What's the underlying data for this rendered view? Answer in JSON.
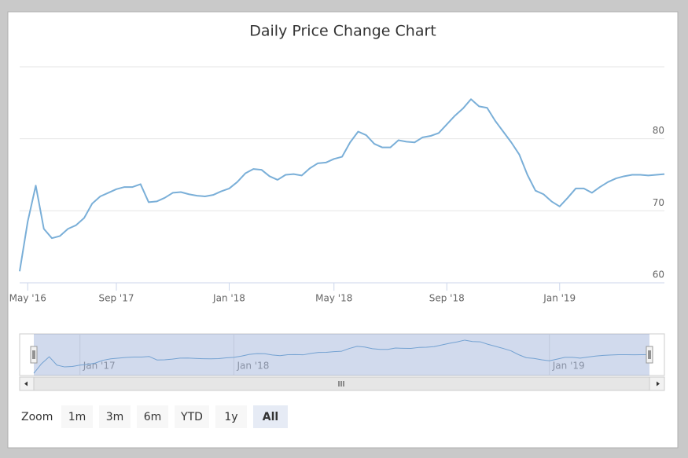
{
  "chart_data": {
    "type": "line",
    "title": "Daily Price Change Chart",
    "x": [
      "2016-04",
      "2016-05",
      "2016-06",
      "2016-07",
      "2016-09",
      "2016-11",
      "2017-01",
      "2017-03",
      "2017-04",
      "2017-06",
      "2017-07",
      "2017-08",
      "2017-09",
      "2017-09",
      "2017-09",
      "2017-09",
      "2017-10",
      "2017-10",
      "2017-10",
      "2017-10",
      "2017-11",
      "2017-11",
      "2017-11",
      "2017-12",
      "2017-12",
      "2017-12",
      "2018-01",
      "2018-01",
      "2018-01",
      "2018-01",
      "2018-02",
      "2018-02",
      "2018-02",
      "2018-03",
      "2018-03",
      "2018-03",
      "2018-04",
      "2018-04",
      "2018-04",
      "2018-05",
      "2018-05",
      "2018-05",
      "2018-05",
      "2018-06",
      "2018-06",
      "2018-06",
      "2018-07",
      "2018-07",
      "2018-07",
      "2018-07",
      "2018-08",
      "2018-08",
      "2018-08",
      "2018-09",
      "2018-09",
      "2018-09",
      "2018-09",
      "2018-10",
      "2018-10",
      "2018-10",
      "2018-11",
      "2018-11",
      "2018-11",
      "2018-11",
      "2018-12",
      "2018-12",
      "2018-12",
      "2019-01",
      "2019-01",
      "2019-01",
      "2019-01",
      "2019-02",
      "2019-02",
      "2019-02",
      "2019-03",
      "2019-03",
      "2019-03",
      "2019-03",
      "2019-04",
      "2019-04",
      "2019-04"
    ],
    "series": [
      {
        "color": "#7aafd8",
        "values": [
          61.6,
          68.5,
          73.5,
          67.5,
          66.2,
          66.5,
          67.5,
          68,
          69,
          71,
          72,
          72.5,
          73,
          73.3,
          73.3,
          73.7,
          71.2,
          71.3,
          71.8,
          72.5,
          72.6,
          72.3,
          72.1,
          72,
          72.2,
          72.7,
          73.1,
          74,
          75.2,
          75.8,
          75.7,
          74.8,
          74.3,
          75,
          75.1,
          74.9,
          75.9,
          76.6,
          76.7,
          77.2,
          77.5,
          79.5,
          81,
          80.5,
          79.3,
          78.8,
          78.8,
          79.8,
          79.6,
          79.5,
          80.2,
          80.4,
          80.8,
          82,
          83.2,
          84.2,
          85.5,
          84.5,
          84.3,
          82.5,
          81,
          79.5,
          77.8,
          75,
          72.8,
          72.3,
          71.3,
          70.6,
          71.8,
          73.1,
          73.1,
          72.5,
          73.3,
          74,
          74.5,
          74.8,
          75,
          75,
          74.9,
          75,
          75.1
        ]
      }
    ],
    "ylim": [
      60,
      90
    ],
    "yticks": [
      60,
      70,
      80
    ],
    "grid": true,
    "xticks": [
      {
        "value": "2016-05",
        "label": "May '16"
      },
      {
        "value": "2017-09",
        "label": "Sep '17"
      },
      {
        "value": "2018-01",
        "label": "Jan '18"
      },
      {
        "value": "2018-05",
        "label": "May '18"
      },
      {
        "value": "2018-09",
        "label": "Sep '18"
      },
      {
        "value": "2019-01",
        "label": "Jan '19"
      }
    ],
    "navigator": {
      "xticks": [
        {
          "value": "2017-01",
          "label": "Jan '17"
        },
        {
          "value": "2018-01",
          "label": "Jan '18"
        },
        {
          "value": "2019-01",
          "label": "Jan '19"
        }
      ]
    },
    "range_selector": {
      "label": "Zoom",
      "buttons": [
        "1m",
        "3m",
        "6m",
        "YTD",
        "1y",
        "All"
      ],
      "selected": 5
    }
  }
}
